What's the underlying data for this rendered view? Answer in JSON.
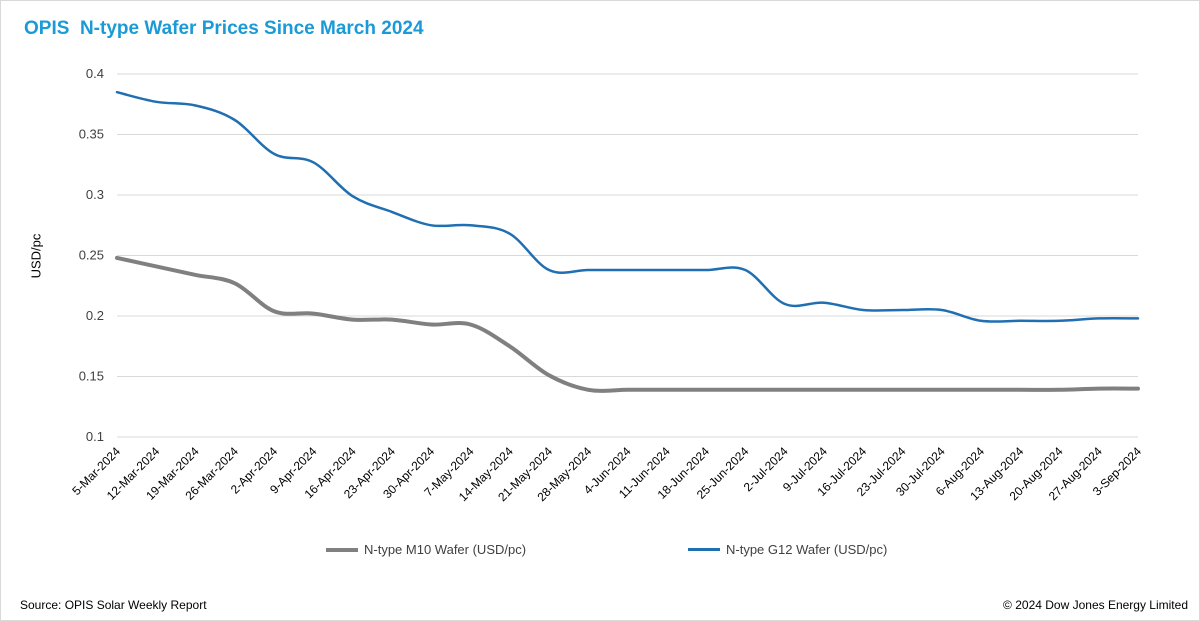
{
  "title": "OPIS  N-type Wafer Prices Since March 2024",
  "source": "Source: OPIS Solar Weekly Report",
  "copyright": "© 2024 Dow Jones Energy Limited",
  "chart_data": {
    "type": "line",
    "title": "OPIS  N-type Wafer Prices Since March 2024",
    "xlabel": "",
    "ylabel": "USD/pc",
    "ylim": [
      0.1,
      0.4
    ],
    "yticks": [
      "0.1",
      "0.15",
      "0.2",
      "0.25",
      "0.3",
      "0.35",
      "0.4"
    ],
    "grid": "horizontal",
    "legend": "bottom",
    "categories": [
      "5-Mar-2024",
      "12-Mar-2024",
      "19-Mar-2024",
      "26-Mar-2024",
      "2-Apr-2024",
      "9-Apr-2024",
      "16-Apr-2024",
      "23-Apr-2024",
      "30-Apr-2024",
      "7-May-2024",
      "14-May-2024",
      "21-May-2024",
      "28-May-2024",
      "4-Jun-2024",
      "11-Jun-2024",
      "18-Jun-2024",
      "25-Jun-2024",
      "2-Jul-2024",
      "9-Jul-2024",
      "16-Jul-2024",
      "23-Jul-2024",
      "30-Jul-2024",
      "6-Aug-2024",
      "13-Aug-2024",
      "20-Aug-2024",
      "27-Aug-2024",
      "3-Sep-2024"
    ],
    "series": [
      {
        "name": "N-type M10 Wafer (USD/pc)",
        "color": "#808080",
        "values": [
          0.248,
          0.241,
          0.234,
          0.227,
          0.204,
          0.202,
          0.197,
          0.197,
          0.193,
          0.193,
          0.175,
          0.151,
          0.139,
          0.139,
          0.139,
          0.139,
          0.139,
          0.139,
          0.139,
          0.139,
          0.139,
          0.139,
          0.139,
          0.139,
          0.139,
          0.14,
          0.14
        ]
      },
      {
        "name": "N-type G12 Wafer (USD/pc)",
        "color": "#1f6fb2",
        "values": [
          0.385,
          0.377,
          0.374,
          0.362,
          0.334,
          0.327,
          0.299,
          0.286,
          0.275,
          0.275,
          0.268,
          0.238,
          0.238,
          0.238,
          0.238,
          0.238,
          0.238,
          0.21,
          0.211,
          0.205,
          0.205,
          0.205,
          0.196,
          0.196,
          0.196,
          0.198,
          0.198
        ]
      }
    ]
  }
}
